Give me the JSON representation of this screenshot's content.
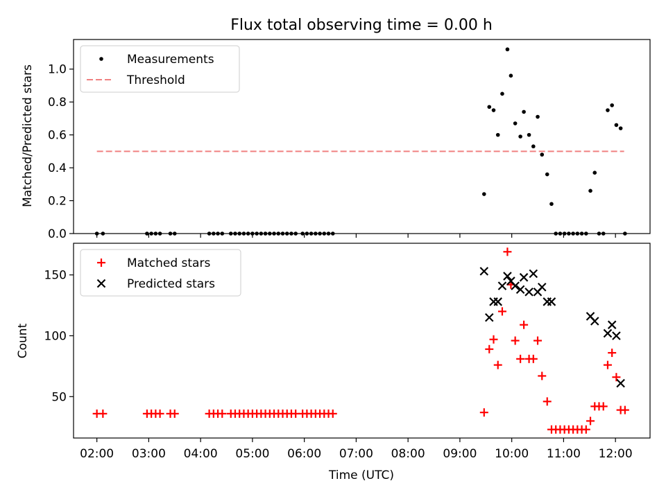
{
  "chart_data": [
    {
      "type": "scatter",
      "title": "Flux total observing time = 0.00 h",
      "ylabel": "Matched/Predicted stars",
      "xlabel": "",
      "xlim": [
        "01:33",
        "12:40"
      ],
      "ylim": [
        0,
        1.18
      ],
      "yticks": [
        "0.0",
        "0.2",
        "0.4",
        "0.6",
        "0.8",
        "1.0"
      ],
      "legend": "top-left",
      "series": [
        {
          "name": "Measurements",
          "color": "#000000",
          "marker": "dot",
          "points": [
            [
              "02:00",
              0
            ],
            [
              "02:07",
              0
            ],
            [
              "02:58",
              0
            ],
            [
              "03:03",
              0
            ],
            [
              "03:08",
              0
            ],
            [
              "03:13",
              0
            ],
            [
              "03:25",
              0
            ],
            [
              "03:30",
              0
            ],
            [
              "04:10",
              0
            ],
            [
              "04:15",
              0
            ],
            [
              "04:20",
              0
            ],
            [
              "04:25",
              0
            ],
            [
              "04:35",
              0
            ],
            [
              "04:40",
              0
            ],
            [
              "04:45",
              0
            ],
            [
              "04:50",
              0
            ],
            [
              "04:55",
              0
            ],
            [
              "05:00",
              0
            ],
            [
              "05:05",
              0
            ],
            [
              "05:10",
              0
            ],
            [
              "05:15",
              0
            ],
            [
              "05:20",
              0
            ],
            [
              "05:25",
              0
            ],
            [
              "05:30",
              0
            ],
            [
              "05:35",
              0
            ],
            [
              "05:40",
              0
            ],
            [
              "05:45",
              0
            ],
            [
              "05:50",
              0
            ],
            [
              "05:58",
              0
            ],
            [
              "06:03",
              0
            ],
            [
              "06:08",
              0
            ],
            [
              "06:13",
              0
            ],
            [
              "06:18",
              0
            ],
            [
              "06:23",
              0
            ],
            [
              "06:28",
              0
            ],
            [
              "06:33",
              0
            ],
            [
              "09:28",
              0.24
            ],
            [
              "09:34",
              0.77
            ],
            [
              "09:39",
              0.75
            ],
            [
              "09:44",
              0.6
            ],
            [
              "09:49",
              0.85
            ],
            [
              "09:55",
              1.12
            ],
            [
              "09:59",
              0.96
            ],
            [
              "10:04",
              0.67
            ],
            [
              "10:10",
              0.59
            ],
            [
              "10:14",
              0.74
            ],
            [
              "10:20",
              0.6
            ],
            [
              "10:25",
              0.53
            ],
            [
              "10:30",
              0.71
            ],
            [
              "10:35",
              0.48
            ],
            [
              "10:41",
              0.36
            ],
            [
              "10:46",
              0.18
            ],
            [
              "10:51",
              0
            ],
            [
              "10:56",
              0
            ],
            [
              "11:01",
              0
            ],
            [
              "11:06",
              0
            ],
            [
              "11:11",
              0
            ],
            [
              "11:16",
              0
            ],
            [
              "11:21",
              0
            ],
            [
              "11:26",
              0
            ],
            [
              "11:31",
              0.26
            ],
            [
              "11:36",
              0.37
            ],
            [
              "11:41",
              0
            ],
            [
              "11:46",
              0
            ],
            [
              "11:51",
              0.75
            ],
            [
              "11:56",
              0.78
            ],
            [
              "12:01",
              0.66
            ],
            [
              "12:06",
              0.64
            ],
            [
              "12:11",
              0
            ]
          ]
        },
        {
          "name": "Threshold",
          "color": "#f08080",
          "style": "dashed",
          "points": [
            [
              "02:00",
              0.5
            ],
            [
              "12:10",
              0.5
            ]
          ]
        }
      ]
    },
    {
      "type": "scatter",
      "title": "",
      "ylabel": "Count",
      "xlabel": "Time (UTC)",
      "xlim": [
        "01:33",
        "12:40"
      ],
      "ylim": [
        16,
        176
      ],
      "yticks": [
        "50",
        "100",
        "150"
      ],
      "xticks": [
        "02:00",
        "03:00",
        "04:00",
        "05:00",
        "06:00",
        "07:00",
        "08:00",
        "09:00",
        "10:00",
        "11:00",
        "12:00"
      ],
      "legend": "top-left",
      "series": [
        {
          "name": "Matched stars",
          "color": "#ff0000",
          "marker": "plus",
          "points": [
            [
              "02:00",
              36
            ],
            [
              "02:07",
              36
            ],
            [
              "02:58",
              36
            ],
            [
              "03:03",
              36
            ],
            [
              "03:08",
              36
            ],
            [
              "03:13",
              36
            ],
            [
              "03:25",
              36
            ],
            [
              "03:30",
              36
            ],
            [
              "04:10",
              36
            ],
            [
              "04:15",
              36
            ],
            [
              "04:20",
              36
            ],
            [
              "04:25",
              36
            ],
            [
              "04:35",
              36
            ],
            [
              "04:40",
              36
            ],
            [
              "04:45",
              36
            ],
            [
              "04:50",
              36
            ],
            [
              "04:55",
              36
            ],
            [
              "05:00",
              36
            ],
            [
              "05:05",
              36
            ],
            [
              "05:10",
              36
            ],
            [
              "05:15",
              36
            ],
            [
              "05:20",
              36
            ],
            [
              "05:25",
              36
            ],
            [
              "05:30",
              36
            ],
            [
              "05:35",
              36
            ],
            [
              "05:40",
              36
            ],
            [
              "05:45",
              36
            ],
            [
              "05:50",
              36
            ],
            [
              "05:58",
              36
            ],
            [
              "06:03",
              36
            ],
            [
              "06:08",
              36
            ],
            [
              "06:13",
              36
            ],
            [
              "06:18",
              36
            ],
            [
              "06:23",
              36
            ],
            [
              "06:28",
              36
            ],
            [
              "06:33",
              36
            ],
            [
              "09:28",
              37
            ],
            [
              "09:34",
              89
            ],
            [
              "09:39",
              97
            ],
            [
              "09:44",
              76
            ],
            [
              "09:49",
              120
            ],
            [
              "09:55",
              169
            ],
            [
              "09:59",
              142
            ],
            [
              "10:04",
              96
            ],
            [
              "10:10",
              81
            ],
            [
              "10:14",
              109
            ],
            [
              "10:20",
              81
            ],
            [
              "10:25",
              81
            ],
            [
              "10:30",
              96
            ],
            [
              "10:35",
              67
            ],
            [
              "10:41",
              46
            ],
            [
              "10:46",
              23
            ],
            [
              "10:51",
              23
            ],
            [
              "10:56",
              23
            ],
            [
              "11:01",
              23
            ],
            [
              "11:06",
              23
            ],
            [
              "11:11",
              23
            ],
            [
              "11:16",
              23
            ],
            [
              "11:21",
              23
            ],
            [
              "11:26",
              23
            ],
            [
              "11:31",
              30
            ],
            [
              "11:36",
              42
            ],
            [
              "11:41",
              42
            ],
            [
              "11:46",
              42
            ],
            [
              "11:51",
              76
            ],
            [
              "11:56",
              86
            ],
            [
              "12:01",
              66
            ],
            [
              "12:06",
              39
            ],
            [
              "12:11",
              39
            ]
          ]
        },
        {
          "name": "Predicted stars",
          "color": "#000000",
          "marker": "x",
          "points": [
            [
              "09:28",
              153
            ],
            [
              "09:34",
              115
            ],
            [
              "09:39",
              128
            ],
            [
              "09:44",
              128
            ],
            [
              "09:49",
              141
            ],
            [
              "09:55",
              149
            ],
            [
              "09:59",
              145
            ],
            [
              "10:04",
              141
            ],
            [
              "10:10",
              138
            ],
            [
              "10:14",
              148
            ],
            [
              "10:20",
              136
            ],
            [
              "10:25",
              151
            ],
            [
              "10:30",
              136
            ],
            [
              "10:35",
              140
            ],
            [
              "10:41",
              128
            ],
            [
              "10:46",
              128
            ],
            [
              "11:31",
              116
            ],
            [
              "11:36",
              112
            ],
            [
              "11:51",
              102
            ],
            [
              "11:56",
              109
            ],
            [
              "12:01",
              100
            ],
            [
              "12:06",
              61
            ]
          ]
        }
      ]
    }
  ]
}
